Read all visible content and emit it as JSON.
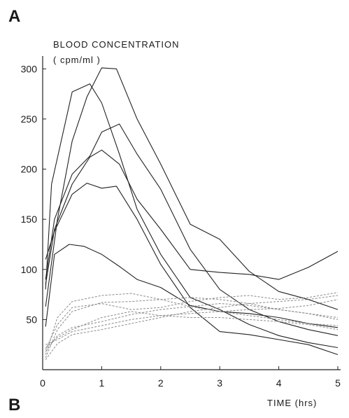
{
  "panel_labels": {
    "top": "A",
    "bottom": "B"
  },
  "chart_data": {
    "type": "line",
    "ylabel_line1": "BLOOD CONCENTRATION",
    "ylabel_line2": "( cpm/ml )",
    "xlabel": "TIME (hrs)",
    "xlim": [
      0,
      5
    ],
    "ylim": [
      0,
      310
    ],
    "xticks": [
      0,
      1,
      2,
      3,
      4,
      5
    ],
    "yticks": [
      50,
      100,
      150,
      200,
      250,
      300
    ],
    "grid": false,
    "solid_color": "#222222",
    "dashed_color": "#8a8a8a",
    "series": [
      {
        "style": "solid",
        "x": [
          0.05,
          0.15,
          0.5,
          0.8,
          1.0,
          1.3,
          1.6,
          2.0,
          2.5,
          3.0,
          3.5,
          4.0,
          4.5,
          5.0
        ],
        "y": [
          80,
          185,
          277,
          285,
          266,
          215,
          160,
          115,
          72,
          60,
          45,
          34,
          27,
          22
        ]
      },
      {
        "style": "solid",
        "x": [
          0.05,
          0.25,
          0.5,
          0.75,
          1.0,
          1.25,
          1.6,
          2.0,
          2.5,
          3.0,
          3.5,
          4.0,
          4.5,
          5.0
        ],
        "y": [
          63,
          150,
          228,
          272,
          301,
          300,
          250,
          205,
          145,
          130,
          98,
          78,
          70,
          60
        ]
      },
      {
        "style": "solid",
        "x": [
          0.05,
          0.2,
          0.5,
          0.8,
          1.0,
          1.3,
          1.6,
          2.0,
          2.5,
          3.0,
          3.5,
          4.0,
          4.5,
          5.0
        ],
        "y": [
          90,
          150,
          195,
          213,
          237,
          245,
          215,
          180,
          120,
          80,
          60,
          48,
          40,
          34
        ]
      },
      {
        "style": "solid",
        "x": [
          0.05,
          0.2,
          0.5,
          0.8,
          1.0,
          1.3,
          1.6,
          2.0,
          2.5,
          3.0,
          3.5,
          4.0,
          4.5,
          5.0
        ],
        "y": [
          85,
          140,
          185,
          212,
          219,
          205,
          170,
          140,
          100,
          97,
          95,
          90,
          102,
          118
        ]
      },
      {
        "style": "solid",
        "x": [
          0.05,
          0.2,
          0.5,
          0.75,
          1.0,
          1.25,
          1.6,
          2.0,
          2.5,
          3.0,
          3.5,
          4.0,
          4.5,
          5.0
        ],
        "y": [
          110,
          138,
          175,
          186,
          181,
          183,
          150,
          105,
          62,
          38,
          35,
          30,
          25,
          15
        ]
      },
      {
        "style": "solid",
        "x": [
          0.05,
          0.2,
          0.45,
          0.7,
          1.0,
          1.3,
          1.6,
          2.0,
          2.5,
          3.0,
          3.5,
          4.0,
          4.5,
          5.0
        ],
        "y": [
          43,
          115,
          125,
          123,
          115,
          103,
          90,
          82,
          64,
          58,
          56,
          52,
          46,
          42
        ]
      },
      {
        "style": "dashed",
        "x": [
          0.05,
          0.25,
          0.5,
          1.0,
          1.5,
          2.0,
          2.5,
          3.0,
          3.5,
          4.0,
          4.5,
          5.0
        ],
        "y": [
          12,
          40,
          58,
          67,
          68,
          70,
          72,
          70,
          66,
          60,
          56,
          52
        ]
      },
      {
        "style": "dashed",
        "x": [
          0.05,
          0.25,
          0.5,
          1.0,
          1.5,
          2.0,
          2.5,
          3.0,
          3.5,
          4.0,
          4.5,
          5.0
        ],
        "y": [
          15,
          52,
          68,
          74,
          76,
          70,
          63,
          58,
          54,
          50,
          46,
          44
        ]
      },
      {
        "style": "dashed",
        "x": [
          0.05,
          0.25,
          0.5,
          1.0,
          1.5,
          2.0,
          2.5,
          3.0,
          3.5,
          4.0,
          4.5,
          5.0
        ],
        "y": [
          20,
          45,
          62,
          66,
          60,
          62,
          68,
          72,
          74,
          70,
          72,
          77
        ]
      },
      {
        "style": "dashed",
        "x": [
          0.05,
          0.25,
          0.5,
          1.0,
          1.5,
          2.0,
          2.5,
          3.0,
          3.5,
          4.0,
          4.5,
          5.0
        ],
        "y": [
          18,
          34,
          42,
          48,
          55,
          60,
          63,
          66,
          64,
          60,
          56,
          50
        ]
      },
      {
        "style": "dashed",
        "x": [
          0.05,
          0.25,
          0.5,
          1.0,
          1.5,
          2.0,
          2.5,
          3.0,
          3.5,
          4.0,
          4.5,
          5.0
        ],
        "y": [
          25,
          30,
          38,
          44,
          50,
          54,
          56,
          58,
          60,
          61,
          64,
          70
        ]
      },
      {
        "style": "dashed",
        "x": [
          0.05,
          0.25,
          0.5,
          1.0,
          1.5,
          2.0,
          2.5,
          3.0,
          3.5,
          4.0,
          4.5,
          5.0
        ],
        "y": [
          22,
          32,
          40,
          52,
          58,
          54,
          52,
          52,
          50,
          48,
          45,
          40
        ]
      },
      {
        "style": "dashed",
        "x": [
          0.05,
          0.25,
          0.5,
          1.0,
          1.5,
          2.0,
          2.5,
          3.0,
          3.5,
          4.0,
          4.5,
          5.0
        ],
        "y": [
          10,
          26,
          35,
          40,
          46,
          52,
          58,
          62,
          66,
          68,
          70,
          74
        ]
      }
    ]
  }
}
